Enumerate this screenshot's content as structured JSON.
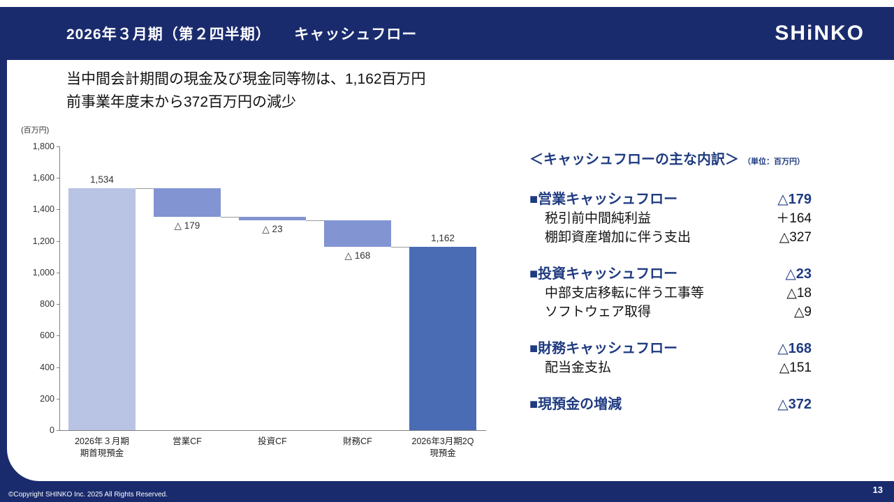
{
  "header": {
    "title": "2026年３月期（第２四半期）　　キャッシュフロー",
    "logo": "SHiNKO"
  },
  "intro": {
    "line1": "当中間会計期間の現金及び現金同等物は、1,162百万円",
    "line2": "前事業年度末から372百万円の減少",
    "accent_color": "#1a2b6d"
  },
  "chart_data": {
    "type": "bar",
    "subtype": "waterfall",
    "unit_label": "(百万円)",
    "title": "",
    "xlabel": "",
    "ylabel": "",
    "ylim": [
      0,
      1800
    ],
    "ytick_step": 200,
    "grid": false,
    "categories": [
      "2026年３月期\n期首現預金",
      "営業CF",
      "投資CF",
      "財務CF",
      "2026年3月期2Q\n現預金"
    ],
    "bars": [
      {
        "name": "期首現預金",
        "start": 0,
        "end": 1534,
        "value": 1534,
        "display": "1,534",
        "label_pos": "above",
        "color_key": "light"
      },
      {
        "name": "営業CF",
        "start": 1534,
        "end": 1355,
        "value": -179,
        "display": "△ 179",
        "label_pos": "below",
        "color_key": "mid"
      },
      {
        "name": "投資CF",
        "start": 1355,
        "end": 1332,
        "value": -23,
        "display": "△ 23",
        "label_pos": "below",
        "color_key": "mid"
      },
      {
        "name": "財務CF",
        "start": 1332,
        "end": 1164,
        "value": -168,
        "display": "△ 168",
        "label_pos": "below",
        "color_key": "mid"
      },
      {
        "name": "2Q現預金",
        "start": 0,
        "end": 1162,
        "value": 1162,
        "display": "1,162",
        "label_pos": "above",
        "color_key": "dark"
      }
    ],
    "colors": {
      "light": "#b9c3e4",
      "mid": "#8294d2",
      "dark": "#4a6cb5"
    }
  },
  "breakdown": {
    "title": "＜キャッシュフローの主な内訳＞",
    "unit": "（単位：百万円）",
    "sections": [
      {
        "label": "■営業キャッシュフロー",
        "value": "△179",
        "items": [
          {
            "label": "税引前中間純利益",
            "value": "＋164"
          },
          {
            "label": "棚卸資産増加に伴う支出",
            "value": "△327"
          }
        ]
      },
      {
        "label": "■投資キャッシュフロー",
        "value": "△23",
        "items": [
          {
            "label": "中部支店移転に伴う工事等",
            "value": "△18"
          },
          {
            "label": "ソフトウェア取得",
            "value": "△9"
          }
        ]
      },
      {
        "label": "■財務キャッシュフロー",
        "value": "△168",
        "items": [
          {
            "label": "配当金支払",
            "value": "△151"
          }
        ]
      },
      {
        "label": "■現預金の増減",
        "value": "△372",
        "items": []
      }
    ]
  },
  "footer": {
    "copyright": "©Copyright SHINKO Inc. 2025 All Rights Reserved.",
    "page": "13"
  }
}
